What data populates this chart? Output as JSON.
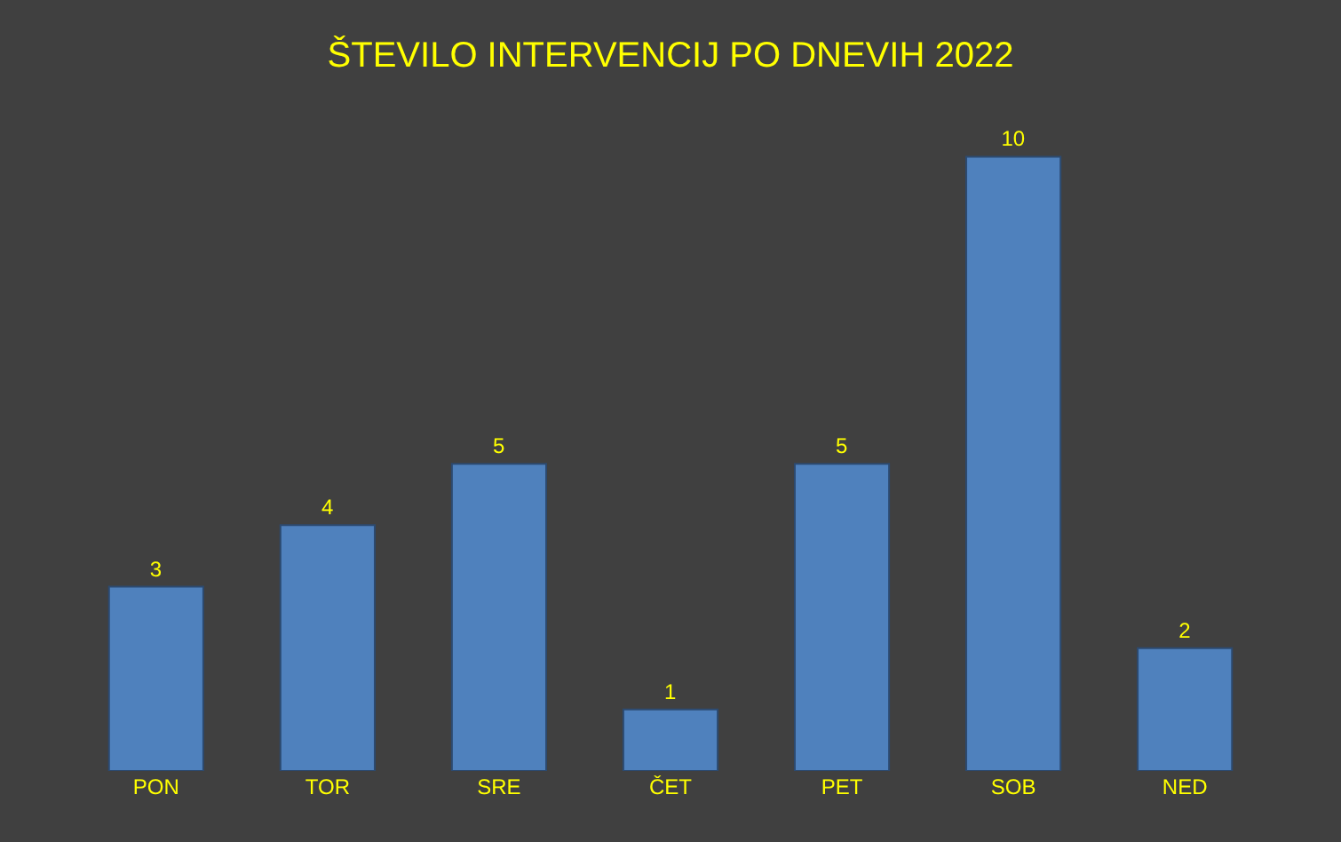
{
  "chart_data": {
    "type": "bar",
    "title": "ŠTEVILO INTERVENCIJ PO DNEVIH 2022",
    "categories": [
      "PON",
      "TOR",
      "SRE",
      "ČET",
      "PET",
      "SOB",
      "NED"
    ],
    "values": [
      3,
      4,
      5,
      1,
      5,
      10,
      2
    ],
    "color": "#4f81bd",
    "data_labels": true
  }
}
